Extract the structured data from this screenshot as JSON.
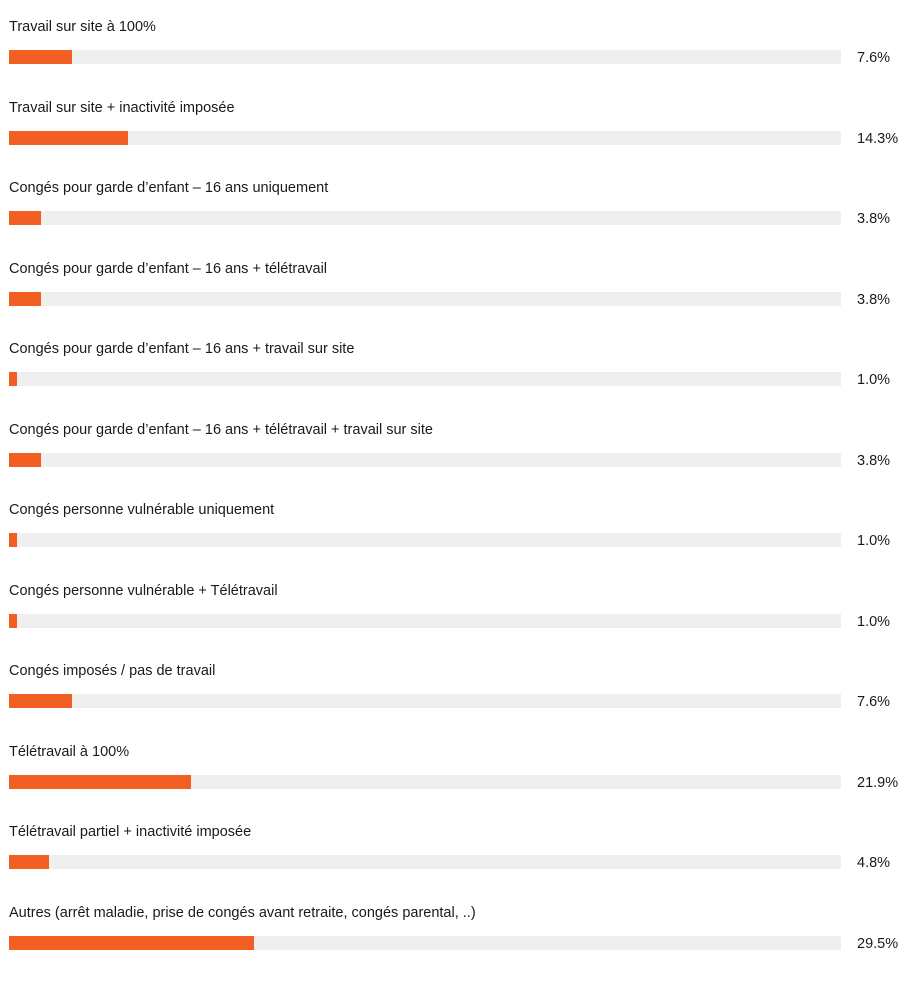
{
  "colors": {
    "bar": "#f15f22",
    "track": "#efefef",
    "text": "#1a1a1a"
  },
  "chart_data": {
    "type": "bar",
    "orientation": "horizontal",
    "xlim": [
      0,
      100
    ],
    "unit": "%",
    "grid": false,
    "legend": "none",
    "categories": [
      "Travail sur site à 100%",
      "Travail sur site + inactivité imposée",
      "Congés pour garde d’enfant – 16 ans uniquement",
      "Congés pour garde d’enfant – 16 ans + télétravail",
      "Congés pour garde d’enfant – 16 ans + travail sur site",
      "Congés pour garde d’enfant – 16 ans + télétravail + travail sur site",
      "Congés personne vulnérable uniquement",
      "Congés personne vulnérable + Télétravail",
      "Congés imposés / pas de travail",
      "Télétravail à 100%",
      "Télétravail partiel + inactivité imposée",
      "Autres (arrêt maladie, prise de congés avant retraite, congés parental, ..)"
    ],
    "values": [
      7.6,
      14.3,
      3.8,
      3.8,
      1.0,
      3.8,
      1.0,
      1.0,
      7.6,
      21.9,
      4.8,
      29.5
    ],
    "value_labels": [
      "7.6%",
      "14.3%",
      "3.8%",
      "3.8%",
      "1.0%",
      "3.8%",
      "1.0%",
      "1.0%",
      "7.6%",
      "21.9%",
      "4.8%",
      "29.5%"
    ]
  }
}
